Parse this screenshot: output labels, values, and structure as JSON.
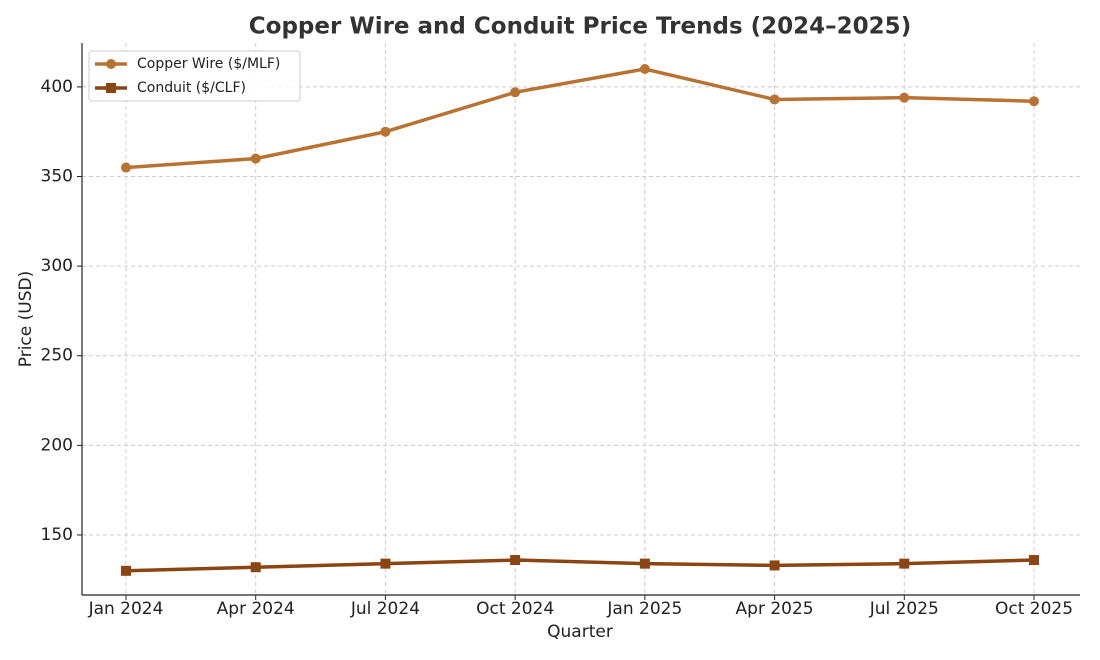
{
  "chart_data": {
    "type": "line",
    "title": "Copper Wire and Conduit Price Trends (2024–2025)",
    "x_label": "Quarter",
    "y_label": "Price (USD)",
    "categories": [
      "Jan 2024",
      "Apr 2024",
      "Jul 2024",
      "Oct 2024",
      "Jan 2025",
      "Apr 2025",
      "Jul 2025",
      "Oct 2025"
    ],
    "series": [
      {
        "name": "Copper Wire ($/MLF)",
        "color": "#b87333",
        "marker": "circle",
        "values": [
          355,
          360,
          375,
          397,
          410,
          393,
          394,
          392
        ]
      },
      {
        "name": "Conduit ($/CLF)",
        "color": "#8b4513",
        "marker": "square",
        "values": [
          130,
          132,
          134,
          136,
          134,
          133,
          134,
          136
        ]
      }
    ],
    "ylim": [
      116.5,
      424.5
    ],
    "yticks": [
      150,
      200,
      250,
      300,
      350,
      400
    ],
    "grid": true,
    "legend": "upper-left"
  }
}
